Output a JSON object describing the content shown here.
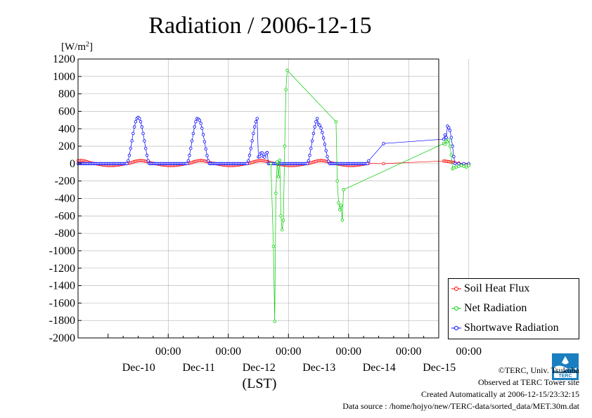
{
  "chart_data": {
    "type": "line",
    "title": "Radiation / 2006-12-15",
    "ylabel_prefix": "[W/m",
    "ylabel_sup": "2",
    "ylabel_suffix": "]",
    "xlabel": "(LST)",
    "ylim": [
      -2000,
      1200
    ],
    "xlim": [
      -12,
      132
    ],
    "y_ticks": [
      1200,
      1000,
      800,
      600,
      400,
      200,
      0,
      -200,
      -400,
      -600,
      -800,
      -1000,
      -1200,
      -1400,
      -1600,
      -1800,
      -2000
    ],
    "x_ticks": [
      {
        "hour": 24,
        "time": "00:00",
        "day": "Dec-10"
      },
      {
        "hour": 48,
        "time": "00:00",
        "day": "Dec-11"
      },
      {
        "hour": 72,
        "time": "00:00",
        "day": "Dec-12"
      },
      {
        "hour": 96,
        "time": "00:00",
        "day": "Dec-13"
      },
      {
        "hour": 120,
        "time": "00:00",
        "day": "Dec-14"
      },
      {
        "hour": 144,
        "time": "00:00",
        "day": "Dec-15"
      }
    ],
    "x_unit": "hours since Dec-09 00:00 LST",
    "grid": true,
    "legend_position": "bottom-right",
    "series": [
      {
        "name": "Soil Heat Flux",
        "color": "#ff0000",
        "x": [],
        "y": []
      },
      {
        "name": "Net Radiation",
        "color": "#00cc00",
        "x": [],
        "y": []
      },
      {
        "name": "Shortwave Radiation",
        "color": "#0000ff",
        "x": [],
        "y": []
      }
    ]
  },
  "footer": {
    "copyright": "©TERC, Univ. Tsukuba",
    "observed": "Observed at TERC Tower site",
    "created": "Created Automatically at 2006-12-15/23:32:15",
    "source": "Data source : /home/hojyo/new/TERC-data/sorted_data/MET.30m.dat"
  },
  "logo": {
    "text": "TERC",
    "color": "#1a7fc0"
  }
}
